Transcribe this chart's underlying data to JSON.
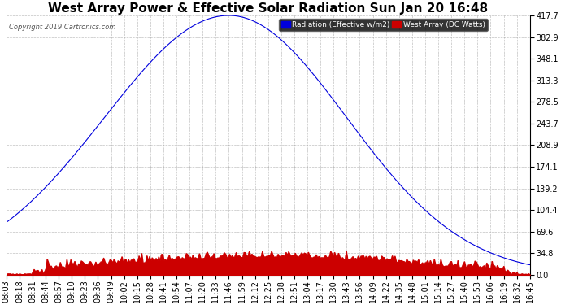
{
  "title": "West Array Power & Effective Solar Radiation Sun Jan 20 16:48",
  "copyright": "Copyright 2019 Cartronics.com",
  "legend_blue": "Radiation (Effective w/m2)",
  "legend_red": "West Array (DC Watts)",
  "yticks": [
    0.0,
    34.8,
    69.6,
    104.4,
    139.2,
    174.1,
    208.9,
    243.7,
    278.5,
    313.3,
    348.1,
    382.9,
    417.7
  ],
  "ymax": 417.7,
  "xtick_labels": [
    "08:03",
    "08:18",
    "08:31",
    "08:44",
    "08:57",
    "09:10",
    "09:23",
    "09:36",
    "09:49",
    "10:02",
    "10:15",
    "10:28",
    "10:41",
    "10:54",
    "11:07",
    "11:20",
    "11:33",
    "11:46",
    "11:59",
    "12:12",
    "12:25",
    "12:38",
    "12:51",
    "13:04",
    "13:17",
    "13:30",
    "13:43",
    "13:56",
    "14:09",
    "14:22",
    "14:35",
    "14:48",
    "15:01",
    "15:14",
    "15:27",
    "15:40",
    "15:53",
    "16:06",
    "16:19",
    "16:32",
    "16:45"
  ],
  "background_color": "#ffffff",
  "plot_bg_color": "#ffffff",
  "grid_color": "#999999",
  "blue_color": "#0000dd",
  "red_color": "#cc0000",
  "title_fontsize": 11,
  "axis_fontsize": 7
}
